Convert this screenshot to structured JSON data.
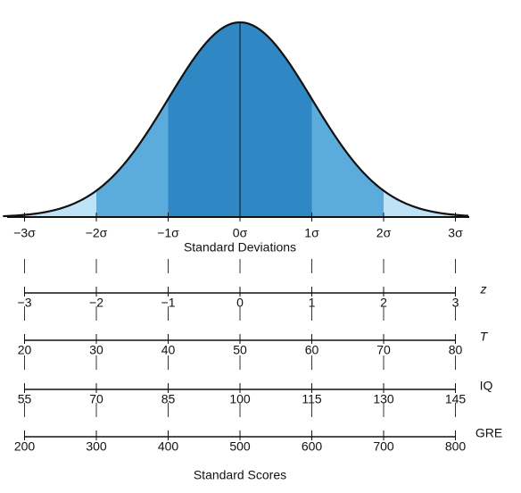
{
  "curve": {
    "sigma_labels": [
      "−3σ",
      "−2σ",
      "−1σ",
      "0σ",
      "1σ",
      "2σ",
      "3σ"
    ],
    "axis_label": "Standard Deviations"
  },
  "scales": [
    {
      "name": "z",
      "labels": [
        "−3",
        "−2",
        "−1",
        "0",
        "1",
        "2",
        "3"
      ]
    },
    {
      "name": "T",
      "labels": [
        "20",
        "30",
        "40",
        "50",
        "60",
        "70",
        "80"
      ]
    },
    {
      "name": "IQ",
      "labels": [
        "55",
        "70",
        "85",
        "100",
        "115",
        "130",
        "145"
      ]
    },
    {
      "name": "GRE",
      "labels": [
        "200",
        "300",
        "400",
        "500",
        "600",
        "700",
        "800"
      ]
    }
  ],
  "footer": "Standard Scores"
}
